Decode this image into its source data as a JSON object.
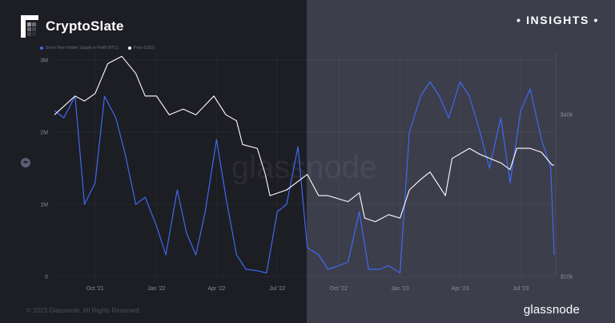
{
  "brand": {
    "name": "CryptoSlate",
    "logo_icon": "cryptoslate-logo-icon"
  },
  "header": {
    "insights_label": "INSIGHTS"
  },
  "footer": {
    "copyright": "© 2023 Glassnode. All Rights Reserved.",
    "logo_text": "glassnode"
  },
  "watermark": "glassnode",
  "colors": {
    "left_panel": "#1d1d24",
    "right_panel": "#3d3e4c",
    "supply": "#3d6af2",
    "price": "#ffffff"
  },
  "chart_data": {
    "type": "line",
    "legend_position": "top-left",
    "grid": true,
    "x_tick_labels": [
      "Oct '21",
      "Jan '22",
      "Apr '22",
      "Jul '22",
      "Oct '22",
      "Jan '23",
      "Apr '23",
      "Jul '23"
    ],
    "y_left": {
      "ticks": [
        "0",
        "1M",
        "2M",
        "3M"
      ],
      "values": [
        0,
        1000000,
        2000000,
        3000000
      ],
      "range": [
        0,
        3100000
      ]
    },
    "y_right": {
      "ticks": [
        "$10k",
        "$40k"
      ],
      "values": [
        10000,
        40000
      ],
      "scale": "log",
      "range": [
        10000,
        68000
      ]
    },
    "series": [
      {
        "name": "Short-Term Holder Supply in Profit (BTC)",
        "axis": "left",
        "color": "#3d6af2",
        "x": [
          "2021-08-01",
          "2021-08-15",
          "2021-09-01",
          "2021-09-15",
          "2021-10-01",
          "2021-10-15",
          "2021-11-01",
          "2021-11-15",
          "2021-12-01",
          "2021-12-15",
          "2022-01-01",
          "2022-01-15",
          "2022-02-01",
          "2022-02-15",
          "2022-03-01",
          "2022-03-15",
          "2022-04-01",
          "2022-04-15",
          "2022-05-01",
          "2022-05-15",
          "2022-06-01",
          "2022-06-15",
          "2022-07-01",
          "2022-07-15",
          "2022-08-01",
          "2022-08-15",
          "2022-09-01",
          "2022-09-15",
          "2022-10-01",
          "2022-10-15",
          "2022-11-01",
          "2022-11-15",
          "2022-12-01",
          "2022-12-15",
          "2023-01-01",
          "2023-01-15",
          "2023-02-01",
          "2023-02-15",
          "2023-03-01",
          "2023-03-15",
          "2023-04-01",
          "2023-04-15",
          "2023-05-01",
          "2023-05-15",
          "2023-06-01",
          "2023-06-15",
          "2023-07-01",
          "2023-07-15",
          "2023-08-01",
          "2023-08-15",
          "2023-08-20"
        ],
        "values": [
          2300000,
          2200000,
          2500000,
          1000000,
          1300000,
          2500000,
          2200000,
          1700000,
          1000000,
          1100000,
          700000,
          300000,
          1200000,
          600000,
          300000,
          900000,
          1900000,
          1100000,
          300000,
          100000,
          80000,
          50000,
          900000,
          1000000,
          1800000,
          400000,
          300000,
          100000,
          150000,
          200000,
          900000,
          100000,
          100000,
          150000,
          50000,
          2000000,
          2500000,
          2700000,
          2500000,
          2200000,
          2700000,
          2500000,
          2000000,
          1500000,
          2200000,
          1300000,
          2300000,
          2600000,
          1900000,
          1500000,
          300000
        ]
      },
      {
        "name": "Price (USD)",
        "axis": "right",
        "color": "#ffffff",
        "x": [
          "2021-08-01",
          "2021-09-01",
          "2021-09-15",
          "2021-10-01",
          "2021-10-20",
          "2021-11-10",
          "2021-12-01",
          "2021-12-15",
          "2022-01-01",
          "2022-01-20",
          "2022-02-10",
          "2022-03-01",
          "2022-03-28",
          "2022-04-15",
          "2022-05-01",
          "2022-05-10",
          "2022-06-01",
          "2022-06-13",
          "2022-06-20",
          "2022-07-15",
          "2022-08-15",
          "2022-09-01",
          "2022-09-15",
          "2022-10-15",
          "2022-11-01",
          "2022-11-09",
          "2022-11-25",
          "2022-12-15",
          "2023-01-01",
          "2023-01-15",
          "2023-02-01",
          "2023-02-15",
          "2023-03-10",
          "2023-03-20",
          "2023-04-15",
          "2023-05-01",
          "2023-06-01",
          "2023-06-15",
          "2023-06-25",
          "2023-07-15",
          "2023-08-01",
          "2023-08-17",
          "2023-08-20"
        ],
        "values": [
          40000,
          47000,
          45000,
          48000,
          62000,
          66000,
          57000,
          47000,
          47000,
          40000,
          42000,
          40000,
          47000,
          40000,
          38000,
          31000,
          30000,
          24000,
          20000,
          21000,
          24000,
          20000,
          20000,
          19000,
          20500,
          16500,
          16000,
          17000,
          16500,
          21000,
          23000,
          24500,
          20000,
          27500,
          30000,
          28500,
          26500,
          25000,
          30000,
          30000,
          29000,
          26000,
          26000
        ]
      }
    ]
  }
}
